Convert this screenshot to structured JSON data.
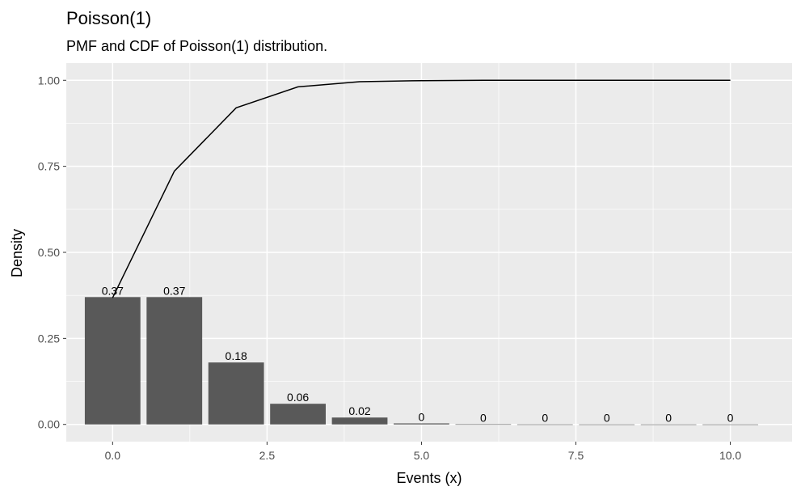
{
  "chart_data": {
    "type": "bar",
    "title": "Poisson(1)",
    "subtitle": "PMF and CDF of Poisson(1) distribution.",
    "xlabel": "Events (x)",
    "ylabel": "Density",
    "x": [
      0,
      1,
      2,
      3,
      4,
      5,
      6,
      7,
      8,
      9,
      10
    ],
    "series": [
      {
        "type": "bar",
        "values": [
          0.37,
          0.37,
          0.18,
          0.06,
          0.02,
          0.003,
          0.0005,
          0.0001,
          0.0,
          0.0,
          0.0
        ]
      },
      {
        "type": "line",
        "values": [
          0.368,
          0.736,
          0.92,
          0.981,
          0.996,
          0.999,
          1.0,
          1.0,
          1.0,
          1.0,
          1.0
        ]
      }
    ],
    "bar_labels": [
      "0.37",
      "0.37",
      "0.18",
      "0.06",
      "0.02",
      "0",
      "0",
      "0",
      "0",
      "0",
      "0"
    ],
    "xlim": [
      -0.75,
      11
    ],
    "ylim": [
      -0.05,
      1.05
    ],
    "x_ticks": [
      0,
      2.5,
      5,
      7.5,
      10
    ],
    "x_tick_labels": [
      "0.0",
      "2.5",
      "5.0",
      "7.5",
      "10.0"
    ],
    "y_ticks": [
      0,
      0.25,
      0.5,
      0.75,
      1.0
    ],
    "y_tick_labels": [
      "0.00",
      "0.25",
      "0.50",
      "0.75",
      "1.00"
    ],
    "grid": true,
    "colors": {
      "panel": "#ebebeb",
      "grid": "#ffffff",
      "bar": "#595959",
      "line": "#000000",
      "tick_text": "#4d4d4d"
    }
  }
}
